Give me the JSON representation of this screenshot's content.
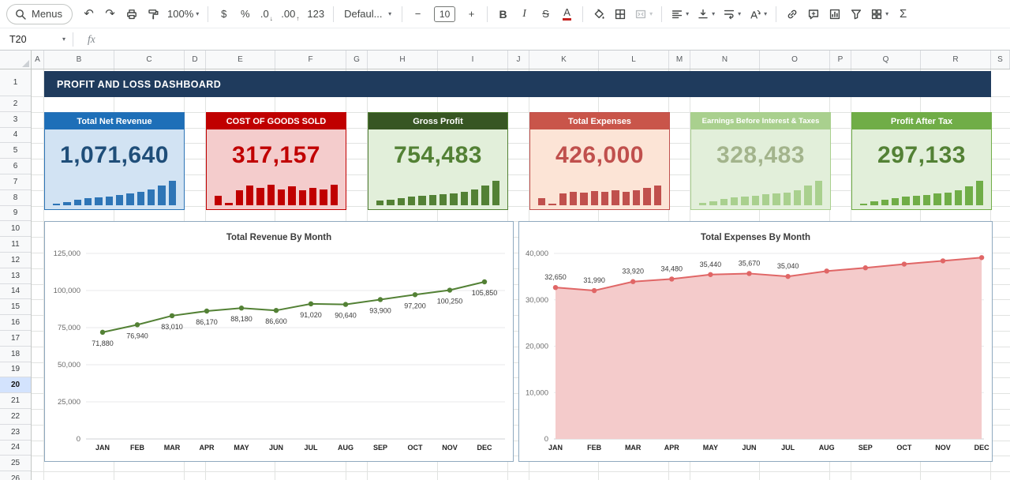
{
  "icon_glyphs": {
    "undo": "↶",
    "redo": "↷",
    "dropdown": "▾",
    "arrow-down-small": "↓",
    "arrow-up-small": "↑"
  },
  "toolbar": {
    "items": [
      {
        "name": "menus-button",
        "type": "pill",
        "icon": "search",
        "label": "Menus"
      },
      {
        "name": "undo-button",
        "icon": "undo"
      },
      {
        "name": "redo-button",
        "icon": "redo"
      },
      {
        "name": "print-button",
        "icon": "print"
      },
      {
        "name": "paint-format-button",
        "icon": "paint"
      },
      {
        "name": "zoom-select",
        "label": "100%",
        "dropdown": true
      },
      {
        "type": "sep"
      },
      {
        "name": "format-currency-button",
        "label": "$"
      },
      {
        "name": "format-percent-button",
        "label": "%"
      },
      {
        "name": "decrease-decimal-button",
        "label": ".0",
        "arrow": "arrow-down-small"
      },
      {
        "name": "increase-decimal-button",
        "label": ".00",
        "arrow": "arrow-up-small"
      },
      {
        "name": "more-formats-button",
        "label": "123"
      },
      {
        "type": "sep"
      },
      {
        "name": "font-select",
        "label": "Defaul...",
        "dropdown": true
      },
      {
        "type": "sep"
      },
      {
        "name": "decrease-font-size-button",
        "label": "−"
      },
      {
        "name": "font-size-input",
        "type": "input",
        "label": "10"
      },
      {
        "name": "increase-font-size-button",
        "label": "+"
      },
      {
        "type": "sep"
      },
      {
        "name": "bold-button",
        "label": "B"
      },
      {
        "name": "italic-button",
        "label": "I"
      },
      {
        "name": "strikethrough-button",
        "label": "S"
      },
      {
        "name": "text-color-button",
        "label": "A"
      },
      {
        "type": "sep"
      },
      {
        "name": "fill-color-button",
        "icon": "fill"
      },
      {
        "name": "borders-button",
        "icon": "borders"
      },
      {
        "name": "merge-cells-button",
        "icon": "merge",
        "dropdown": true,
        "disabled": true
      },
      {
        "type": "sep"
      },
      {
        "name": "horizontal-align-button",
        "icon": "alignl",
        "dropdown": true
      },
      {
        "name": "vertical-align-button",
        "icon": "valign",
        "dropdown": true
      },
      {
        "name": "text-wrap-button",
        "icon": "wrap",
        "dropdown": true
      },
      {
        "name": "text-rotation-button",
        "icon": "rotate",
        "dropdown": true
      },
      {
        "type": "sep"
      },
      {
        "name": "insert-link-button",
        "icon": "link"
      },
      {
        "name": "insert-comment-button",
        "icon": "comment"
      },
      {
        "name": "insert-chart-button",
        "icon": "chart"
      },
      {
        "name": "create-filter-button",
        "icon": "filter"
      },
      {
        "name": "table-views-button",
        "icon": "views",
        "dropdown": true
      },
      {
        "name": "functions-button",
        "label": "Σ"
      }
    ]
  },
  "formula_bar": {
    "name_box": "T20",
    "fx_label": "fx"
  },
  "grid": {
    "columns": [
      "A",
      "B",
      "C",
      "D",
      "E",
      "F",
      "G",
      "H",
      "I",
      "J",
      "K",
      "L",
      "M",
      "N",
      "O",
      "P",
      "Q",
      "R",
      "S"
    ],
    "rows": [
      1,
      2,
      3,
      4,
      5,
      6,
      7,
      8,
      9,
      10,
      11,
      12,
      13,
      14,
      15,
      16,
      17,
      18,
      19,
      20,
      21,
      22,
      23,
      24,
      25,
      26
    ],
    "selected_row": 20
  },
  "banner": {
    "title": "PROFIT AND LOSS  DASHBOARD",
    "bg": "#1f3b5d"
  },
  "cards": [
    {
      "title": "Total Net Revenue",
      "value": "1,071,640",
      "header_bg": "#1e6fb8",
      "body_bg": "#d2e3f3",
      "value_color": "#1f4e79",
      "bar_color": "#2e75b6",
      "border_color": "#2e75b6",
      "bar_heights_pct": [
        6,
        12,
        22,
        28,
        33,
        36,
        43,
        48,
        54,
        63,
        80,
        100
      ]
    },
    {
      "title": "COST OF GOODS SOLD",
      "value": "317,157",
      "header_bg": "#c00000",
      "body_bg": "#f4cccc",
      "value_color": "#c00000",
      "bar_color": "#c00000",
      "border_color": "#c00000",
      "bar_heights_pct": [
        38,
        10,
        62,
        80,
        70,
        83,
        66,
        78,
        60,
        72,
        65,
        85
      ]
    },
    {
      "title": "Gross Profit",
      "value": "754,483",
      "header_bg": "#375623",
      "body_bg": "#e2efda",
      "value_color": "#538135",
      "bar_color": "#538135",
      "border_color": "#538135",
      "bar_heights_pct": [
        18,
        24,
        30,
        34,
        38,
        41,
        45,
        50,
        56,
        64,
        82,
        100
      ]
    },
    {
      "title": "Total Expenses",
      "value": "426,000",
      "header_bg": "#c9554a",
      "body_bg": "#fce4d6",
      "value_color": "#c0504d",
      "bar_color": "#c0504d",
      "border_color": "#c0504d",
      "bar_heights_pct": [
        30,
        8,
        48,
        55,
        52,
        58,
        54,
        60,
        56,
        62,
        72,
        82
      ]
    },
    {
      "title": "Earnings Before Interest & Taxes",
      "value": "328,483",
      "header_bg": "#a9d08e",
      "body_bg": "#e2efda",
      "value_color": "#a3b48c",
      "bar_color": "#a9d08e",
      "border_color": "#a9d08e",
      "bar_heights_pct": [
        10,
        17,
        26,
        32,
        36,
        39,
        44,
        48,
        53,
        61,
        80,
        100
      ]
    },
    {
      "title": "Profit After Tax",
      "value": "297,133",
      "header_bg": "#70ad47",
      "body_bg": "#e2efda",
      "value_color": "#538135",
      "bar_color": "#70ad47",
      "border_color": "#70ad47",
      "bar_heights_pct": [
        8,
        15,
        24,
        30,
        34,
        38,
        43,
        47,
        52,
        60,
        79,
        100
      ]
    }
  ],
  "chart_data": [
    {
      "type": "line",
      "title": "Total Revenue By Month",
      "categories": [
        "JAN",
        "FEB",
        "MAR",
        "APR",
        "MAY",
        "JUN",
        "JUL",
        "AUG",
        "SEP",
        "OCT",
        "NOV",
        "DEC"
      ],
      "values": [
        71880,
        76940,
        83010,
        86170,
        88180,
        86600,
        91020,
        90640,
        93900,
        97200,
        100250,
        105850
      ],
      "data_labels": [
        "71,880",
        "76,940",
        "83,010",
        "86,170",
        "88,180",
        "86,600",
        "91,020",
        "90,640",
        "93,900",
        "97,200",
        "100,250",
        "105,850"
      ],
      "xlabel": "",
      "ylabel": "",
      "ylim": [
        0,
        125000
      ],
      "yticks": [
        0,
        25000,
        50000,
        75000,
        100000,
        125000
      ],
      "ytick_labels": [
        "0",
        "25,000",
        "50,000",
        "75,000",
        "100,000",
        "125,000"
      ],
      "grid": "horizontal",
      "legend": "none",
      "line_color": "#538135"
    },
    {
      "type": "area",
      "title": "Total Expenses By Month",
      "categories": [
        "JAN",
        "FEB",
        "MAR",
        "APR",
        "MAY",
        "JUN",
        "JUL",
        "AUG",
        "SEP",
        "OCT",
        "NOV",
        "DEC"
      ],
      "values": [
        32650,
        31990,
        33920,
        34480,
        35440,
        35670,
        35040,
        36200,
        36900,
        37700,
        38400,
        39100
      ],
      "data_labels": [
        "32,650",
        "31,990",
        "33,920",
        "34,480",
        "35,440",
        "35,670",
        "35,040",
        "",
        "",
        "",
        "",
        ""
      ],
      "xlabel": "",
      "ylabel": "",
      "ylim": [
        0,
        40000
      ],
      "yticks": [
        0,
        10000,
        20000,
        30000,
        40000
      ],
      "ytick_labels": [
        "0",
        "10,000",
        "20,000",
        "30,000",
        "40,000"
      ],
      "grid": "horizontal",
      "legend": "none",
      "line_color": "#e06666",
      "fill_color": "#f4cbcb"
    }
  ]
}
